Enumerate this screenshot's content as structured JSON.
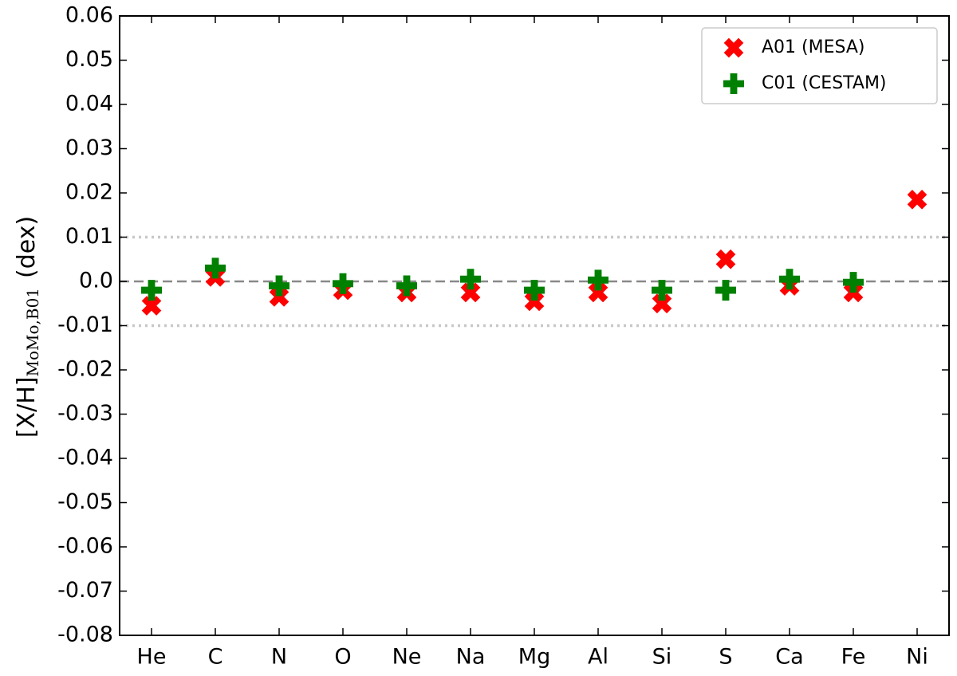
{
  "chart_data": {
    "type": "scatter",
    "ylabel": {
      "main": "[X/H]",
      "subscript": "MoMo,B01",
      "unit": "(dex)"
    },
    "categories": [
      "He",
      "C",
      "N",
      "O",
      "Ne",
      "Na",
      "Mg",
      "Al",
      "Si",
      "S",
      "Ca",
      "Fe",
      "Ni"
    ],
    "series": [
      {
        "name": "A01 (MESA)",
        "color": "#ff0000",
        "marker": "x",
        "values": [
          -0.0055,
          0.001,
          -0.0035,
          -0.002,
          -0.0025,
          -0.0025,
          -0.0045,
          -0.0025,
          -0.005,
          0.005,
          -0.001,
          -0.0025,
          0.0185
        ]
      },
      {
        "name": "C01 (CESTAM)",
        "color": "#008000",
        "marker": "plus",
        "values": [
          -0.002,
          0.003,
          -0.001,
          -0.0005,
          -0.001,
          0.0005,
          -0.002,
          0.0003,
          -0.002,
          -0.002,
          0.0005,
          -0.0002,
          null
        ]
      }
    ],
    "ylim": [
      -0.08,
      0.06
    ],
    "yticks": [
      -0.08,
      -0.07,
      -0.06,
      -0.05,
      -0.04,
      -0.03,
      -0.02,
      -0.01,
      {
        "value": 0,
        "label": "0.0"
      },
      0.01,
      0.02,
      0.03,
      0.04,
      0.05,
      0.06
    ],
    "reference_lines": [
      {
        "value": 0,
        "style": "dashed",
        "color": "#888888"
      },
      {
        "value": 0.01,
        "style": "dotted",
        "color": "#c8c8c8"
      },
      {
        "value": -0.01,
        "style": "dotted",
        "color": "#c8c8c8"
      }
    ],
    "legend": "upper right"
  }
}
